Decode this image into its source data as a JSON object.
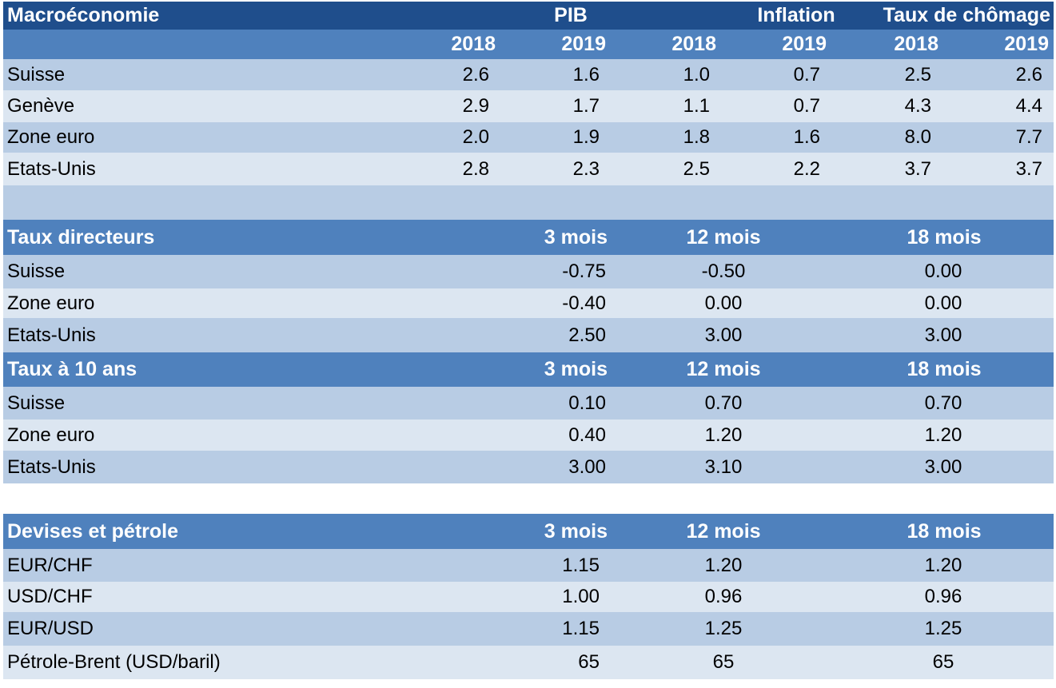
{
  "macro": {
    "title": "Macroéconomie",
    "groups": [
      "PIB",
      "Inflation",
      "Taux de chômage"
    ],
    "years": [
      "2018",
      "2019",
      "2018",
      "2019",
      "2018",
      "2019"
    ],
    "rows": [
      {
        "label": "Suisse",
        "values": [
          "2.6",
          "1.6",
          "1.0",
          "0.7",
          "2.5",
          "2.6"
        ]
      },
      {
        "label": "Genève",
        "values": [
          "2.9",
          "1.7",
          "1.1",
          "0.7",
          "4.3",
          "4.4"
        ]
      },
      {
        "label": "Zone euro",
        "values": [
          "2.0",
          "1.9",
          "1.8",
          "1.6",
          "8.0",
          "7.7"
        ]
      },
      {
        "label": "Etats-Unis",
        "values": [
          "2.8",
          "2.3",
          "2.5",
          "2.2",
          "3.7",
          "3.7"
        ]
      }
    ]
  },
  "policy_rates": {
    "title": "Taux directeurs",
    "horizons": [
      "3 mois",
      "12 mois",
      "18 mois"
    ],
    "rows": [
      {
        "label": "Suisse",
        "values": [
          "-0.75",
          "-0.50",
          "0.00"
        ]
      },
      {
        "label": "Zone euro",
        "values": [
          "-0.40",
          "0.00",
          "0.00"
        ]
      },
      {
        "label": "Etats-Unis",
        "values": [
          "2.50",
          "3.00",
          "3.00"
        ]
      }
    ]
  },
  "ten_year": {
    "title": "Taux à 10 ans",
    "horizons": [
      "3 mois",
      "12 mois",
      "18 mois"
    ],
    "rows": [
      {
        "label": "Suisse",
        "values": [
          "0.10",
          "0.70",
          "0.70"
        ]
      },
      {
        "label": "Zone euro",
        "values": [
          "0.40",
          "1.20",
          "1.20"
        ]
      },
      {
        "label": "Etats-Unis",
        "values": [
          "3.00",
          "3.10",
          "3.00"
        ]
      }
    ]
  },
  "fx_oil": {
    "title": "Devises et pétrole",
    "horizons": [
      "3 mois",
      "12 mois",
      "18 mois"
    ],
    "rows": [
      {
        "label": "EUR/CHF",
        "values": [
          "1.15",
          "1.20",
          "1.20"
        ]
      },
      {
        "label": "USD/CHF",
        "values": [
          "1.00",
          "0.96",
          "0.96"
        ]
      },
      {
        "label": "EUR/USD",
        "values": [
          "1.15",
          "1.25",
          "1.25"
        ]
      },
      {
        "label": "Pétrole-Brent (USD/baril)",
        "values": [
          "65",
          "65",
          "65"
        ]
      }
    ]
  },
  "colors": {
    "header_dark": "#1f4e8c",
    "header_mid": "#4f81bd",
    "band_dark": "#b8cce4",
    "band_light": "#dce6f1"
  }
}
